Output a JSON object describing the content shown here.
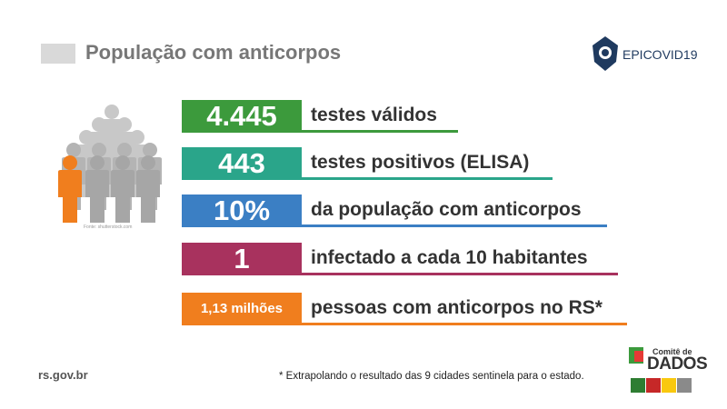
{
  "header": {
    "title": "População com anticorpos",
    "logo": "EPICOVID19"
  },
  "stats": [
    {
      "value": "4.445",
      "label": "testes válidos"
    },
    {
      "value": "443",
      "label": "testes positivos (ELISA)"
    },
    {
      "value": "10%",
      "label": "da população com anticorpos"
    },
    {
      "value": "1",
      "label": "infectado a cada 10 habitantes"
    },
    {
      "value": "1,13 milhões",
      "label": "pessoas com anticorpos no RS*"
    }
  ],
  "image_credit": "Fonte: shutterstock.com",
  "footer": {
    "site": "rs.gov.br",
    "note": "* Extrapolando o resultado das 9 cidades sentinela para o estado."
  },
  "footer_logo": {
    "line1": "Comitê de",
    "line2": "DADOS"
  }
}
